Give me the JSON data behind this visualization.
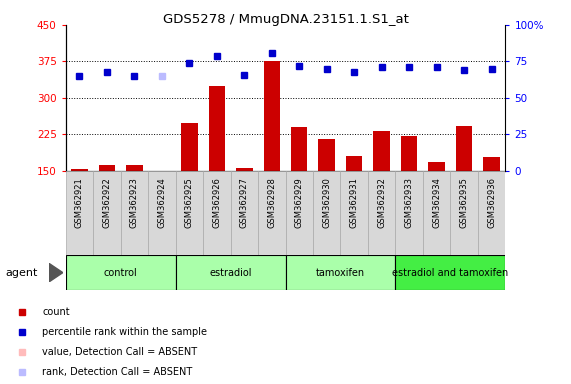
{
  "title": "GDS5278 / MmugDNA.23151.1.S1_at",
  "samples": [
    "GSM362921",
    "GSM362922",
    "GSM362923",
    "GSM362924",
    "GSM362925",
    "GSM362926",
    "GSM362927",
    "GSM362928",
    "GSM362929",
    "GSM362930",
    "GSM362931",
    "GSM362932",
    "GSM362933",
    "GSM362934",
    "GSM362935",
    "GSM362936"
  ],
  "counts": [
    153,
    163,
    163,
    null,
    249,
    325,
    155,
    375,
    240,
    215,
    180,
    232,
    222,
    168,
    242,
    178
  ],
  "counts_absent": [
    false,
    false,
    false,
    true,
    false,
    false,
    false,
    false,
    false,
    false,
    false,
    false,
    false,
    false,
    false,
    false
  ],
  "ranks": [
    65,
    68,
    65,
    65,
    74,
    79,
    66,
    81,
    72,
    70,
    68,
    71,
    71,
    71,
    69,
    70
  ],
  "ranks_absent": [
    false,
    false,
    false,
    true,
    false,
    false,
    false,
    false,
    false,
    false,
    false,
    false,
    false,
    false,
    false,
    false
  ],
  "groups": [
    {
      "label": "control",
      "start": 0,
      "end": 3,
      "color": "#aaffaa"
    },
    {
      "label": "estradiol",
      "start": 4,
      "end": 7,
      "color": "#aaffaa"
    },
    {
      "label": "tamoxifen",
      "start": 8,
      "end": 11,
      "color": "#aaffaa"
    },
    {
      "label": "estradiol and tamoxifen",
      "start": 12,
      "end": 15,
      "color": "#44ee44"
    }
  ],
  "ylim_left": [
    150,
    450
  ],
  "ylim_right": [
    0,
    100
  ],
  "yticks_left": [
    150,
    225,
    300,
    375,
    450
  ],
  "yticks_right": [
    0,
    25,
    50,
    75,
    100
  ],
  "bar_color": "#cc0000",
  "bar_absent_color": "#ffbbbb",
  "rank_color": "#0000cc",
  "rank_absent_color": "#bbbbff",
  "plot_bg": "#ffffff",
  "agent_label": "agent",
  "legend_items": [
    {
      "label": "count",
      "color": "#cc0000"
    },
    {
      "label": "percentile rank within the sample",
      "color": "#0000cc"
    },
    {
      "label": "value, Detection Call = ABSENT",
      "color": "#ffbbbb"
    },
    {
      "label": "rank, Detection Call = ABSENT",
      "color": "#bbbbff"
    }
  ]
}
